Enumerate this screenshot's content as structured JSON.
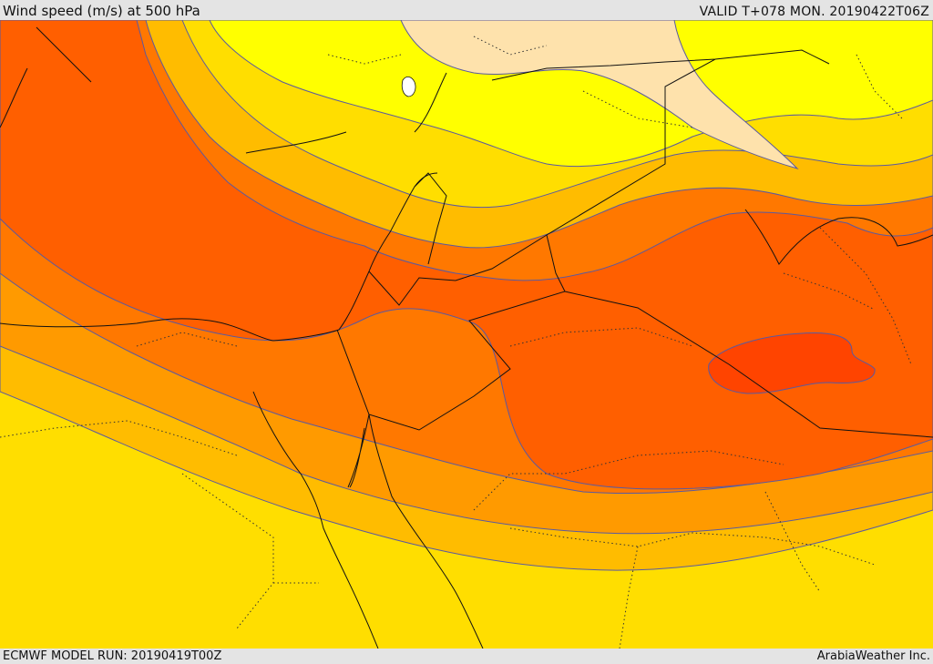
{
  "header": {
    "title": "Wind speed (m/s) at 500 hPa",
    "valid": "VALID T+078 MON. 20190422T06Z"
  },
  "footer": {
    "model_run": "ECMWF MODEL RUN: 20190419T00Z",
    "credit": "ArabiaWeather Inc."
  },
  "map": {
    "variable": "wind speed",
    "pressure_level_hPa": 500,
    "units": "m/s",
    "shading_colors": {
      "lightest": "#fee2ac",
      "yellow": "#ffff00",
      "light_orange": "#ffde00",
      "orange_yellow": "#ffbc00",
      "orange": "#ff9a00",
      "dark_orange": "#ff7800",
      "red_orange": "#ff5f00",
      "core": "#ff4400",
      "lake": "#ffffff"
    },
    "line_colors": {
      "contour": "#5a5aa0",
      "coast_border": "#111111",
      "internal_border": "#333333"
    }
  }
}
